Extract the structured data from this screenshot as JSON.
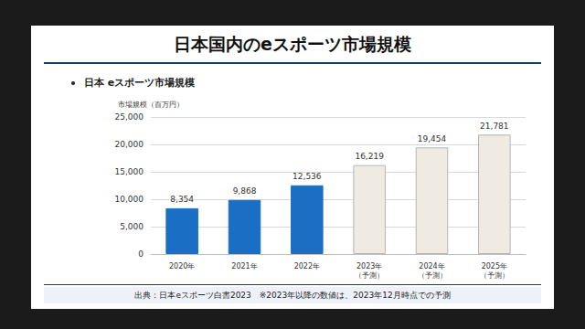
{
  "chart_data": {
    "type": "bar",
    "title": "日本国内のeスポーツ市場規模",
    "subtitle": "日本 eスポーツ市場規模",
    "y_label": "市場規模（百万円）",
    "categories": [
      "2020年",
      "2021年",
      "2022年",
      "2023年\n（予測）",
      "2024年\n（予測）",
      "2025年\n（予測）"
    ],
    "values": [
      8354,
      9868,
      12536,
      16219,
      19454,
      21781
    ],
    "value_labels": [
      "8,354",
      "9,868",
      "12,536",
      "16,219",
      "19,454",
      "21,781"
    ],
    "colors": [
      "#1a6fc4",
      "#1a6fc4",
      "#1a6fc4",
      "#efebe2",
      "#efebe2",
      "#efebe2"
    ],
    "ylim": [
      0,
      25000
    ],
    "yticks": [
      0,
      {
        "value": 5000,
        "label": "5,000"
      },
      {
        "value": 10000,
        "label": "10,000"
      },
      {
        "value": 15000,
        "label": "15,000"
      },
      {
        "value": 20000,
        "label": "20,000"
      },
      {
        "value": 25000,
        "label": "25,000"
      }
    ],
    "grid": true,
    "data_labels": true,
    "annotations": [
      "出典：日本eスポーツ白書2023　※2023年以降の数値は、2023年12月時点での予測"
    ]
  }
}
